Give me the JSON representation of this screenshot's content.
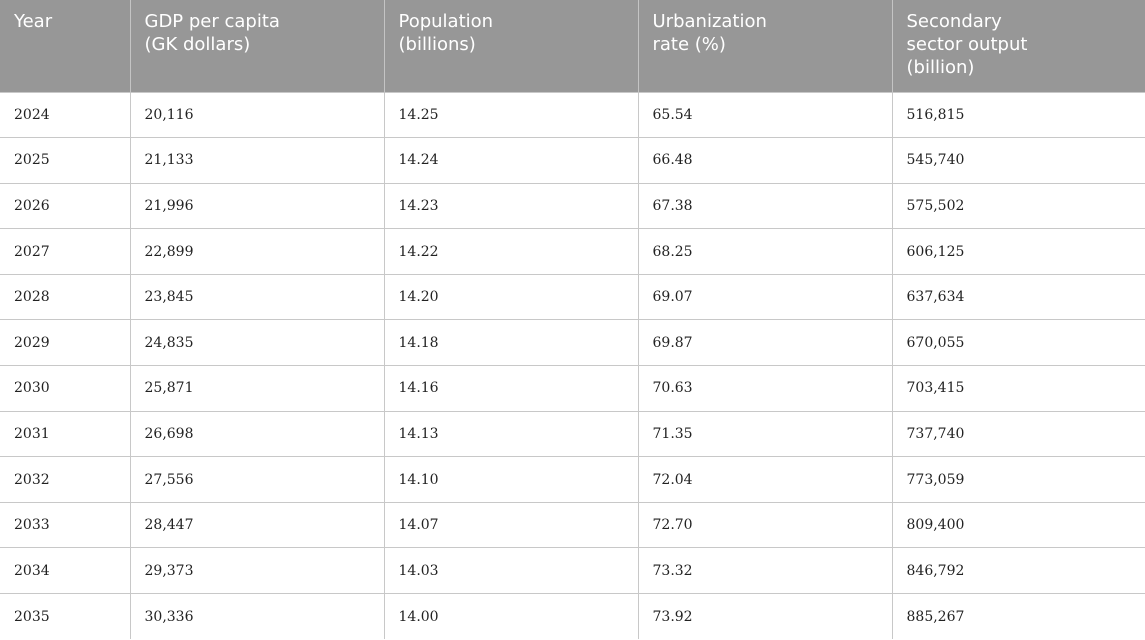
{
  "chart_data": {
    "type": "table",
    "columns": [
      "Year",
      "GDP per capita\n(GK dollars)",
      "Population\n(billions)",
      "Urbanization\nrate (%)",
      "Secondary\nsector output\n(billion)"
    ],
    "rows": [
      [
        "2024",
        "20,116",
        "14.25",
        "65.54",
        "516,815"
      ],
      [
        "2025",
        "21,133",
        "14.24",
        "66.48",
        "545,740"
      ],
      [
        "2026",
        "21,996",
        "14.23",
        "67.38",
        "575,502"
      ],
      [
        "2027",
        "22,899",
        "14.22",
        "68.25",
        "606,125"
      ],
      [
        "2028",
        "23,845",
        "14.20",
        "69.07",
        "637,634"
      ],
      [
        "2029",
        "24,835",
        "14.18",
        "69.87",
        "670,055"
      ],
      [
        "2030",
        "25,871",
        "14.16",
        "70.63",
        "703,415"
      ],
      [
        "2031",
        "26,698",
        "14.13",
        "71.35",
        "737,740"
      ],
      [
        "2032",
        "27,556",
        "14.10",
        "72.04",
        "773,059"
      ],
      [
        "2033",
        "28,447",
        "14.07",
        "72.70",
        "809,400"
      ],
      [
        "2034",
        "29,373",
        "14.03",
        "73.32",
        "846,792"
      ],
      [
        "2035",
        "30,336",
        "14.00",
        "73.92",
        "885,267"
      ]
    ]
  },
  "colors": {
    "header_background": "#979797",
    "header_text": "#ffffff",
    "grid_line": "#c8c8c8",
    "cell_text": "#222222"
  }
}
